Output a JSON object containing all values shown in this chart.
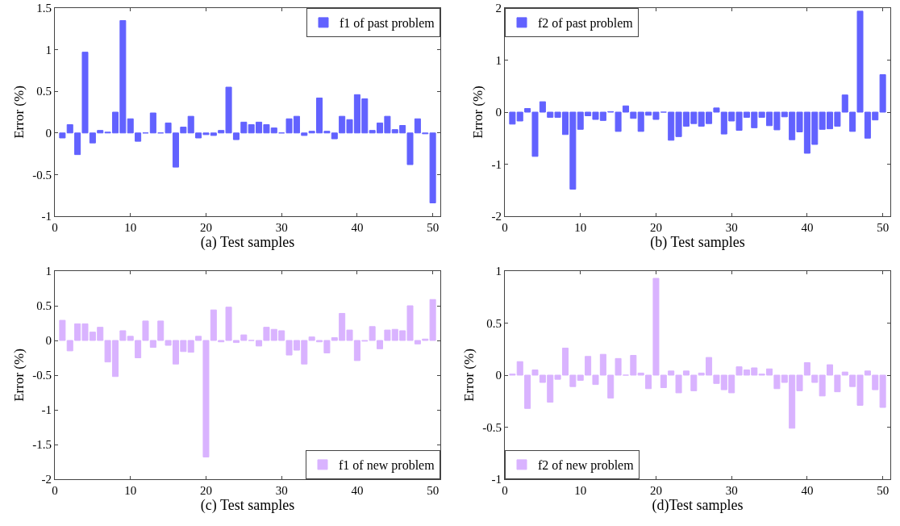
{
  "chart_data": [
    {
      "type": "bar",
      "xlabel": "(a) Test samples",
      "ylabel": "Error (%)",
      "x": [
        1,
        2,
        3,
        4,
        5,
        6,
        7,
        8,
        9,
        10,
        11,
        12,
        13,
        14,
        15,
        16,
        17,
        18,
        19,
        20,
        21,
        22,
        23,
        24,
        25,
        26,
        27,
        28,
        29,
        30,
        31,
        32,
        33,
        34,
        35,
        36,
        37,
        38,
        39,
        40,
        41,
        42,
        43,
        44,
        45,
        46,
        47,
        48,
        49,
        50
      ],
      "series": [
        {
          "name": "f1 of past problem",
          "color": "#6262ff",
          "values": [
            -0.06,
            0.1,
            -0.26,
            0.97,
            -0.12,
            0.03,
            0.01,
            0.25,
            1.35,
            0.17,
            -0.1,
            0.0,
            0.24,
            0.0,
            0.12,
            -0.41,
            0.07,
            0.2,
            -0.06,
            -0.02,
            -0.03,
            0.03,
            0.55,
            -0.08,
            0.13,
            0.1,
            0.13,
            0.1,
            0.06,
            0.0,
            0.17,
            0.2,
            -0.03,
            0.02,
            0.42,
            0.02,
            -0.07,
            0.2,
            0.16,
            0.46,
            0.41,
            0.03,
            0.12,
            0.2,
            0.04,
            0.09,
            -0.38,
            0.17,
            -0.01,
            -0.84
          ]
        }
      ],
      "xlim": [
        0,
        51
      ],
      "xticks": [
        0,
        10,
        20,
        30,
        40,
        50
      ],
      "ylim": [
        -1,
        1.5
      ],
      "yticks": [
        -1,
        -0.5,
        0,
        0.5,
        1,
        1.5
      ],
      "grid": false,
      "legend": "top right"
    },
    {
      "type": "bar",
      "xlabel": "(b) Test samples",
      "ylabel": "Error (%)",
      "x": [
        1,
        2,
        3,
        4,
        5,
        6,
        7,
        8,
        9,
        10,
        11,
        12,
        13,
        14,
        15,
        16,
        17,
        18,
        19,
        20,
        21,
        22,
        23,
        24,
        25,
        26,
        27,
        28,
        29,
        30,
        31,
        32,
        33,
        34,
        35,
        36,
        37,
        38,
        39,
        40,
        41,
        42,
        43,
        44,
        45,
        46,
        47,
        48,
        49,
        50
      ],
      "series": [
        {
          "name": "f2 of past problem",
          "color": "#6262ff",
          "values": [
            -0.23,
            -0.17,
            0.07,
            -0.85,
            0.2,
            -0.1,
            -0.1,
            -0.43,
            -1.48,
            -0.33,
            -0.07,
            -0.14,
            -0.16,
            0.01,
            -0.37,
            0.12,
            -0.12,
            -0.37,
            -0.06,
            -0.14,
            0.0,
            -0.54,
            -0.47,
            -0.27,
            -0.22,
            -0.27,
            -0.22,
            0.08,
            -0.42,
            -0.17,
            -0.35,
            -0.1,
            -0.3,
            -0.1,
            -0.26,
            -0.34,
            -0.09,
            -0.53,
            -0.38,
            -0.79,
            -0.62,
            -0.33,
            -0.32,
            -0.27,
            0.33,
            -0.37,
            1.94,
            -0.5,
            -0.15,
            0.72
          ]
        }
      ],
      "xlim": [
        0,
        51
      ],
      "xticks": [
        0,
        10,
        20,
        30,
        40,
        50
      ],
      "ylim": [
        -2,
        2
      ],
      "yticks": [
        -2,
        -1,
        0,
        1,
        2
      ],
      "grid": false,
      "legend": "top left"
    },
    {
      "type": "bar",
      "xlabel": "(c) Test samples",
      "ylabel": "Error (%)",
      "x": [
        1,
        2,
        3,
        4,
        5,
        6,
        7,
        8,
        9,
        10,
        11,
        12,
        13,
        14,
        15,
        16,
        17,
        18,
        19,
        20,
        21,
        22,
        23,
        24,
        25,
        26,
        27,
        28,
        29,
        30,
        31,
        32,
        33,
        34,
        35,
        36,
        37,
        38,
        39,
        40,
        41,
        42,
        43,
        44,
        45,
        46,
        47,
        48,
        49,
        50
      ],
      "series": [
        {
          "name": "f1 of new problem",
          "color": "#d9b3ff",
          "values": [
            0.29,
            -0.15,
            0.24,
            0.24,
            0.12,
            0.19,
            -0.31,
            -0.52,
            0.14,
            0.06,
            -0.25,
            0.28,
            -0.1,
            0.28,
            -0.07,
            -0.34,
            -0.16,
            -0.17,
            0.06,
            -1.68,
            0.44,
            -0.02,
            0.48,
            -0.03,
            0.08,
            0.0,
            -0.08,
            0.19,
            0.16,
            0.14,
            -0.21,
            -0.14,
            -0.34,
            0.05,
            -0.02,
            -0.18,
            0.04,
            0.39,
            0.15,
            -0.29,
            -0.01,
            0.2,
            -0.12,
            0.15,
            0.16,
            0.14,
            0.5,
            -0.05,
            0.02,
            0.59
          ]
        }
      ],
      "xlim": [
        0,
        51
      ],
      "xticks": [
        0,
        10,
        20,
        30,
        40,
        50
      ],
      "ylim": [
        -2,
        1
      ],
      "yticks": [
        -2,
        -1.5,
        -1,
        -0.5,
        0,
        0.5,
        1
      ],
      "grid": false,
      "legend": "bottom right"
    },
    {
      "type": "bar",
      "xlabel": "(d)Test samples",
      "ylabel": "Error (%)",
      "x": [
        1,
        2,
        3,
        4,
        5,
        6,
        7,
        8,
        9,
        10,
        11,
        12,
        13,
        14,
        15,
        16,
        17,
        18,
        19,
        20,
        21,
        22,
        23,
        24,
        25,
        26,
        27,
        28,
        29,
        30,
        31,
        32,
        33,
        34,
        35,
        36,
        37,
        38,
        39,
        40,
        41,
        42,
        43,
        44,
        45,
        46,
        47,
        48,
        49,
        50
      ],
      "series": [
        {
          "name": "f2 of new problem",
          "color": "#d9b3ff",
          "values": [
            0.01,
            0.13,
            -0.32,
            0.05,
            -0.07,
            -0.26,
            -0.04,
            0.26,
            -0.11,
            -0.05,
            0.18,
            -0.09,
            0.2,
            -0.22,
            0.16,
            0.0,
            0.19,
            0.02,
            -0.13,
            0.93,
            -0.12,
            0.04,
            -0.17,
            0.04,
            -0.15,
            0.02,
            0.17,
            -0.08,
            -0.14,
            -0.17,
            0.08,
            0.05,
            0.07,
            0.01,
            0.06,
            -0.13,
            -0.07,
            -0.51,
            -0.15,
            0.12,
            -0.07,
            -0.2,
            0.1,
            -0.16,
            0.03,
            -0.11,
            -0.29,
            0.04,
            -0.14,
            -0.31
          ]
        }
      ],
      "xlim": [
        0,
        51
      ],
      "xticks": [
        0,
        10,
        20,
        30,
        40,
        50
      ],
      "ylim": [
        -1,
        1
      ],
      "yticks": [
        -1,
        -0.5,
        0,
        0.5,
        1
      ],
      "grid": false,
      "legend": "bottom left"
    }
  ]
}
